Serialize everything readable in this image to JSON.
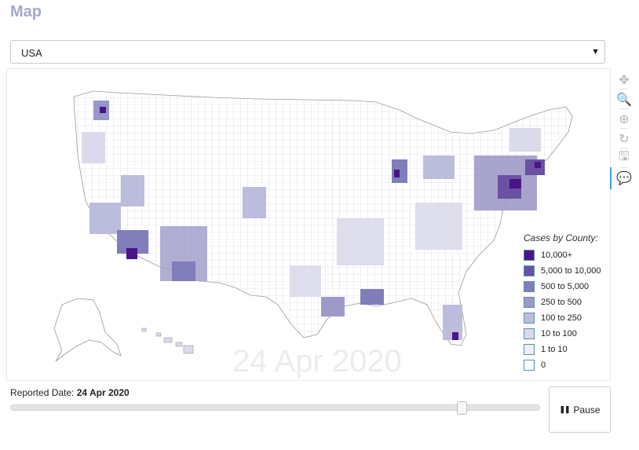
{
  "header": {
    "title": "Map"
  },
  "region_select": {
    "value": "USA",
    "arrow": "▼"
  },
  "map": {
    "date_overlay": "24 Apr 2020",
    "legend": {
      "title": "Cases by County:",
      "items": [
        {
          "label": "10,000+",
          "color": "#4a1486"
        },
        {
          "label": "5,000 to 10,000",
          "color": "#6a51a3"
        },
        {
          "label": "500 to 5,000",
          "color": "#807dba"
        },
        {
          "label": "250 to 500",
          "color": "#9e9ac8"
        },
        {
          "label": "100 to 250",
          "color": "#bcbddc"
        },
        {
          "label": "10 to 100",
          "color": "#dadaeb"
        },
        {
          "label": "1 to 10",
          "color": "#efedf5"
        },
        {
          "label": "0",
          "color": "#ffffff"
        }
      ]
    }
  },
  "toolbar": {
    "tools": [
      {
        "name": "pan-icon",
        "glyph": "✥"
      },
      {
        "name": "zoom-box-icon",
        "glyph": "🔍"
      },
      {
        "name": "wheel-zoom-icon",
        "glyph": "⊕"
      },
      {
        "name": "reset-icon",
        "glyph": "↻"
      },
      {
        "name": "save-icon",
        "glyph": "🖫"
      },
      {
        "name": "hover-icon",
        "glyph": "💬"
      }
    ]
  },
  "controls": {
    "reported_label": "Reported Date:",
    "reported_value": "24 Apr 2020",
    "slider_fraction": 0.86,
    "pause_label": "Pause",
    "pause_glyph": "❚❚"
  }
}
